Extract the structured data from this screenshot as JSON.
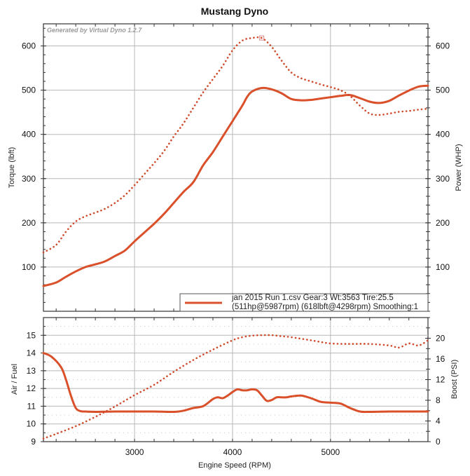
{
  "chart_data": [
    {
      "type": "line",
      "title": "Mustang Dyno",
      "watermark": "Generated by Virtual Dyno 1.2.7",
      "xlabel": "",
      "ylabel": "Torque (lbft)",
      "y2label": "Power (WHP)",
      "xlim": [
        2070,
        5995
      ],
      "ylim": [
        0,
        650
      ],
      "y2lim": [
        0,
        650
      ],
      "xticks": [
        3000,
        4000,
        5000
      ],
      "yticks": [
        100,
        200,
        300,
        400,
        500,
        600
      ],
      "y2ticks": [
        100,
        200,
        300,
        400,
        500,
        600
      ],
      "grid": true,
      "legend": {
        "placement": "bottom-right",
        "line1": "jan 2015 Run 1.csv Gear:3 Wt:3563 Tire:25.5",
        "line2": "(511hp@5987rpm) (618lbft@4298rpm) Smoothing:1"
      },
      "color": "#d9502a",
      "series": [
        {
          "name": "Power (WHP)",
          "style": "solid",
          "axis": "right",
          "x": [
            2070,
            2200,
            2300,
            2400,
            2500,
            2600,
            2700,
            2800,
            2900,
            3000,
            3100,
            3200,
            3300,
            3400,
            3500,
            3600,
            3700,
            3800,
            3900,
            4000,
            4100,
            4150,
            4200,
            4300,
            4400,
            4500,
            4600,
            4700,
            4800,
            4900,
            5000,
            5100,
            5200,
            5300,
            5400,
            5500,
            5600,
            5700,
            5800,
            5900,
            5995
          ],
          "y": [
            57,
            65,
            78,
            90,
            100,
            106,
            113,
            125,
            137,
            158,
            178,
            198,
            220,
            245,
            270,
            292,
            330,
            360,
            395,
            430,
            465,
            485,
            497,
            505,
            502,
            493,
            480,
            477,
            478,
            481,
            484,
            487,
            489,
            482,
            474,
            471,
            476,
            488,
            499,
            508,
            510
          ]
        },
        {
          "name": "Torque (lbft)",
          "style": "dotted",
          "axis": "left",
          "x": [
            2070,
            2200,
            2300,
            2400,
            2500,
            2600,
            2700,
            2800,
            2900,
            3000,
            3100,
            3200,
            3300,
            3400,
            3500,
            3600,
            3700,
            3800,
            3900,
            4000,
            4100,
            4200,
            4298,
            4400,
            4500,
            4600,
            4700,
            4800,
            4900,
            5000,
            5100,
            5200,
            5300,
            5400,
            5500,
            5600,
            5700,
            5800,
            5900,
            5995
          ],
          "y": [
            133,
            150,
            180,
            203,
            215,
            223,
            232,
            245,
            262,
            285,
            310,
            335,
            362,
            395,
            425,
            460,
            495,
            525,
            555,
            590,
            612,
            618,
            618,
            598,
            567,
            540,
            527,
            520,
            513,
            507,
            500,
            487,
            465,
            447,
            444,
            447,
            451,
            453,
            456,
            458
          ]
        }
      ]
    },
    {
      "type": "line",
      "xlabel": "Engine Speed (RPM)",
      "ylabel": "Air / Fuel",
      "y2label": "Boost (PSI)",
      "xlim": [
        2070,
        5995
      ],
      "ylim": [
        9,
        16
      ],
      "y2lim": [
        0,
        24
      ],
      "xticks": [
        3000,
        4000,
        5000
      ],
      "yticks": [
        9,
        10,
        11,
        12,
        13,
        14,
        15
      ],
      "y2ticks": [
        0,
        4,
        8,
        12,
        16,
        20
      ],
      "grid": true,
      "color": "#d9502a",
      "series": [
        {
          "name": "Air / Fuel",
          "style": "solid",
          "axis": "left",
          "x": [
            2070,
            2150,
            2250,
            2300,
            2350,
            2400,
            2450,
            2500,
            2600,
            2800,
            3000,
            3200,
            3400,
            3500,
            3600,
            3700,
            3800,
            3850,
            3900,
            3950,
            4000,
            4050,
            4100,
            4150,
            4200,
            4250,
            4300,
            4350,
            4400,
            4450,
            4500,
            4550,
            4600,
            4700,
            4800,
            4900,
            5000,
            5100,
            5200,
            5300,
            5400,
            5600,
            5800,
            5995
          ],
          "y": [
            14.0,
            13.8,
            13.2,
            12.5,
            11.6,
            10.9,
            10.72,
            10.7,
            10.68,
            10.7,
            10.7,
            10.7,
            10.68,
            10.75,
            10.9,
            11.0,
            11.4,
            11.5,
            11.45,
            11.6,
            11.8,
            11.95,
            11.9,
            11.9,
            11.95,
            11.9,
            11.6,
            11.3,
            11.35,
            11.5,
            11.5,
            11.5,
            11.55,
            11.6,
            11.45,
            11.25,
            11.2,
            11.15,
            10.9,
            10.7,
            10.68,
            10.7,
            10.7,
            10.7
          ]
        },
        {
          "name": "Boost (PSI)",
          "style": "dotted",
          "axis": "right",
          "x": [
            2070,
            2200,
            2400,
            2600,
            2800,
            3000,
            3200,
            3400,
            3600,
            3800,
            4000,
            4100,
            4200,
            4300,
            4400,
            4500,
            4600,
            4800,
            5000,
            5200,
            5400,
            5600,
            5700,
            5800,
            5900,
            5995
          ],
          "y": [
            0.6,
            1.5,
            3.0,
            4.8,
            6.8,
            9.0,
            11.0,
            13.5,
            15.8,
            17.8,
            19.6,
            20.2,
            20.5,
            20.6,
            20.6,
            20.4,
            20.2,
            19.6,
            19.0,
            18.9,
            18.9,
            18.6,
            18.2,
            19.0,
            18.6,
            19.6
          ]
        }
      ]
    }
  ]
}
